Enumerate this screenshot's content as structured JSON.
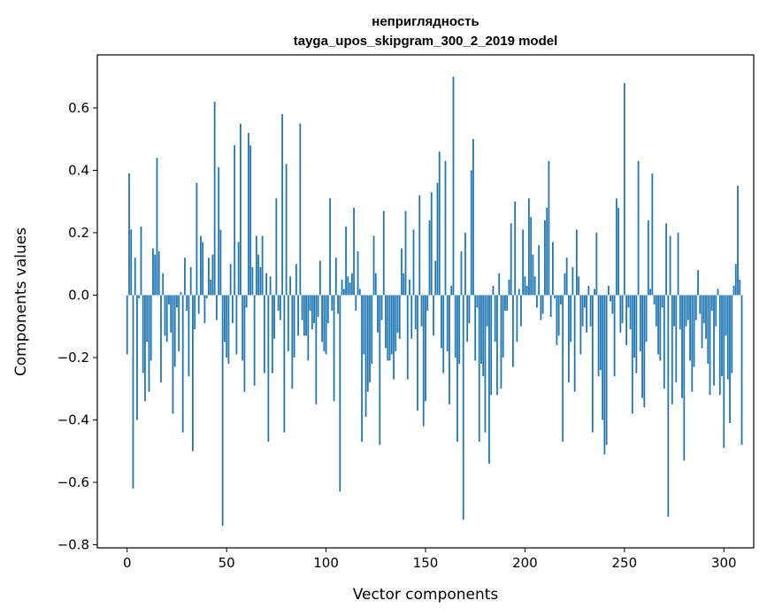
{
  "chart_data": {
    "type": "bar",
    "title_line1": "неприглядность",
    "title_line2": "tayga_upos_skipgram_300_2_2019 model",
    "xlabel": "Vector components",
    "ylabel": "Components values",
    "xlim": [
      -15,
      315
    ],
    "ylim": [
      -0.81,
      0.77
    ],
    "xticks": [
      0,
      50,
      100,
      150,
      200,
      250,
      300
    ],
    "yticks": [
      -0.8,
      -0.6,
      -0.4,
      -0.2,
      0.0,
      0.2,
      0.4,
      0.6
    ],
    "ytick_labels": [
      "−0.8",
      "−0.6",
      "−0.4",
      "−0.2",
      "0.0",
      "0.2",
      "0.4",
      "0.6"
    ],
    "bar_color": "#1f77b4",
    "grid": false,
    "values": [
      -0.19,
      0.39,
      0.21,
      -0.62,
      0.12,
      -0.4,
      -0.01,
      0.22,
      -0.25,
      -0.34,
      -0.15,
      -0.31,
      -0.21,
      0.15,
      0.13,
      0.44,
      0.14,
      -0.28,
      0.07,
      -0.13,
      -0.15,
      -0.03,
      -0.12,
      -0.38,
      -0.23,
      -0.04,
      -0.18,
      0.01,
      -0.44,
      0.12,
      -0.05,
      -0.26,
      0.09,
      -0.5,
      -0.11,
      0.36,
      -0.06,
      0.19,
      0.17,
      -0.09,
      -0.01,
      0.12,
      0.05,
      0.13,
      0.62,
      -0.08,
      0.41,
      0.21,
      -0.74,
      -0.15,
      -0.2,
      -0.22,
      0.1,
      -0.09,
      0.48,
      -0.19,
      0.17,
      0.55,
      -0.21,
      -0.31,
      -0.04,
      0.52,
      0.48,
      0.09,
      -0.29,
      0.19,
      0.13,
      0.09,
      0.19,
      -0.25,
      0.07,
      -0.47,
      0.06,
      -0.25,
      -0.14,
      0.31,
      -0.05,
      -0.08,
      0.58,
      -0.44,
      0.42,
      -0.18,
      0.06,
      -0.3,
      -0.2,
      0.1,
      -0.13,
      0.55,
      -0.08,
      -0.13,
      -0.13,
      -0.21,
      -0.05,
      -0.11,
      -0.09,
      -0.35,
      -0.07,
      0.11,
      -0.15,
      -0.18,
      -0.19,
      -0.09,
      0.31,
      -0.05,
      -0.34,
      0.12,
      -0.06,
      -0.63,
      0.05,
      0.02,
      0.22,
      0.06,
      0.04,
      0.07,
      0.28,
      -0.05,
      0.14,
      0.02,
      -0.47,
      -0.19,
      -0.39,
      -0.31,
      -0.28,
      -0.22,
      0.19,
      0.07,
      -0.12,
      -0.48,
      -0.08,
      0.27,
      -0.17,
      -0.21,
      -0.21,
      -0.19,
      -0.27,
      -0.18,
      -0.12,
      -0.14,
      0.15,
      0.07,
      0.27,
      -0.27,
      0.05,
      -0.14,
      0.21,
      -0.11,
      -0.37,
      0.32,
      -0.1,
      -0.42,
      -0.34,
      -0.05,
      0.24,
      0.33,
      -0.13,
      0.11,
      0.36,
      0.46,
      -0.17,
      -0.25,
      0.43,
      -0.18,
      -0.35,
      0.03,
      0.7,
      -0.2,
      -0.47,
      -0.22,
      0.14,
      -0.72,
      0.2,
      -0.15,
      -0.09,
      0.4,
      0.5,
      -0.21,
      -0.04,
      -0.47,
      -0.22,
      -0.26,
      -0.44,
      -0.1,
      -0.54,
      -0.32,
      0.03,
      -0.15,
      -0.32,
      0.07,
      -0.3,
      -0.2,
      -0.05,
      -0.05,
      0.05,
      0.23,
      -0.23,
      0.3,
      -0.15,
      0.02,
      -0.1,
      0.21,
      0.06,
      0.03,
      0.31,
      0.25,
      0.13,
      0.06,
      -0.04,
      0.16,
      -0.08,
      -0.06,
      0.24,
      0.28,
      0.43,
      -0.07,
      0.17,
      -0.01,
      -0.16,
      -0.13,
      -0.03,
      -0.47,
      0.07,
      0.12,
      -0.28,
      -0.15,
      0.09,
      -0.31,
      0.21,
      0.06,
      -0.19,
      -0.1,
      -0.04,
      -0.12,
      0.03,
      -0.1,
      -0.44,
      0.02,
      0.2,
      -0.26,
      -0.24,
      -0.4,
      -0.51,
      -0.48,
      0.03,
      -0.02,
      -0.06,
      -0.26,
      0.31,
      0.28,
      -0.12,
      -0.09,
      0.68,
      -0.16,
      -0.04,
      -0.11,
      -0.38,
      -0.2,
      -0.25,
      0.43,
      -0.18,
      -0.33,
      -0.36,
      -0.15,
      0.24,
      0.02,
      0.39,
      -0.03,
      -0.1,
      -0.19,
      -0.21,
      -0.04,
      -0.3,
      0.23,
      -0.71,
      0.19,
      -0.35,
      -0.1,
      -0.28,
      0.2,
      -0.11,
      -0.33,
      -0.53,
      -0.1,
      -0.08,
      -0.21,
      -0.31,
      -0.23,
      -0.08,
      0.08,
      -0.06,
      -0.17,
      -0.09,
      -0.14,
      -0.22,
      -0.32,
      -0.05,
      -0.29,
      -0.1,
      0.02,
      -0.32,
      -0.26,
      -0.49,
      -0.13,
      -0.27,
      -0.41,
      -0.25,
      0.03,
      0.1,
      0.35,
      0.05,
      -0.48
    ]
  }
}
